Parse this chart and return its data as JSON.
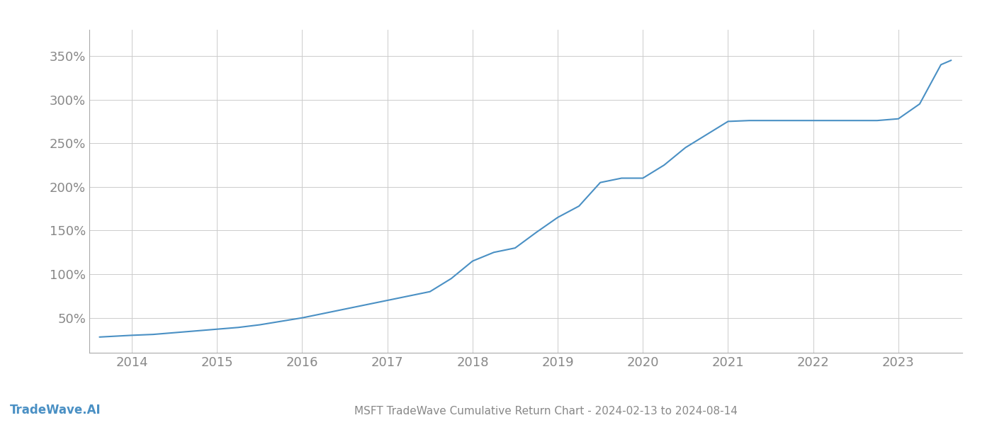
{
  "title": "MSFT TradeWave Cumulative Return Chart - 2024-02-13 to 2024-08-14",
  "watermark": "TradeWave.AI",
  "line_color": "#4a90c4",
  "background_color": "#ffffff",
  "grid_color": "#cccccc",
  "x_years": [
    2014,
    2015,
    2016,
    2017,
    2018,
    2019,
    2020,
    2021,
    2022,
    2023
  ],
  "x_data": [
    2013.62,
    2014.0,
    2014.25,
    2014.5,
    2014.75,
    2015.0,
    2015.25,
    2015.5,
    2015.75,
    2016.0,
    2016.25,
    2016.5,
    2016.75,
    2017.0,
    2017.25,
    2017.5,
    2017.75,
    2018.0,
    2018.25,
    2018.5,
    2018.75,
    2019.0,
    2019.25,
    2019.5,
    2019.75,
    2020.0,
    2020.25,
    2020.5,
    2020.75,
    2021.0,
    2021.25,
    2021.5,
    2021.75,
    2022.0,
    2022.25,
    2022.5,
    2022.75,
    2023.0,
    2023.25,
    2023.5,
    2023.62
  ],
  "y_data": [
    28,
    30,
    31,
    33,
    35,
    37,
    39,
    42,
    46,
    50,
    55,
    60,
    65,
    70,
    75,
    80,
    95,
    115,
    125,
    130,
    148,
    165,
    178,
    205,
    210,
    210,
    225,
    245,
    260,
    275,
    276,
    276,
    276,
    276,
    276,
    276,
    276,
    278,
    295,
    340,
    345
  ],
  "ylim": [
    10,
    380
  ],
  "yticks": [
    50,
    100,
    150,
    200,
    250,
    300,
    350
  ],
  "xlim": [
    2013.5,
    2023.75
  ],
  "tick_label_color": "#888888",
  "tick_fontsize": 13,
  "title_fontsize": 11,
  "watermark_fontsize": 12,
  "line_width": 1.5
}
